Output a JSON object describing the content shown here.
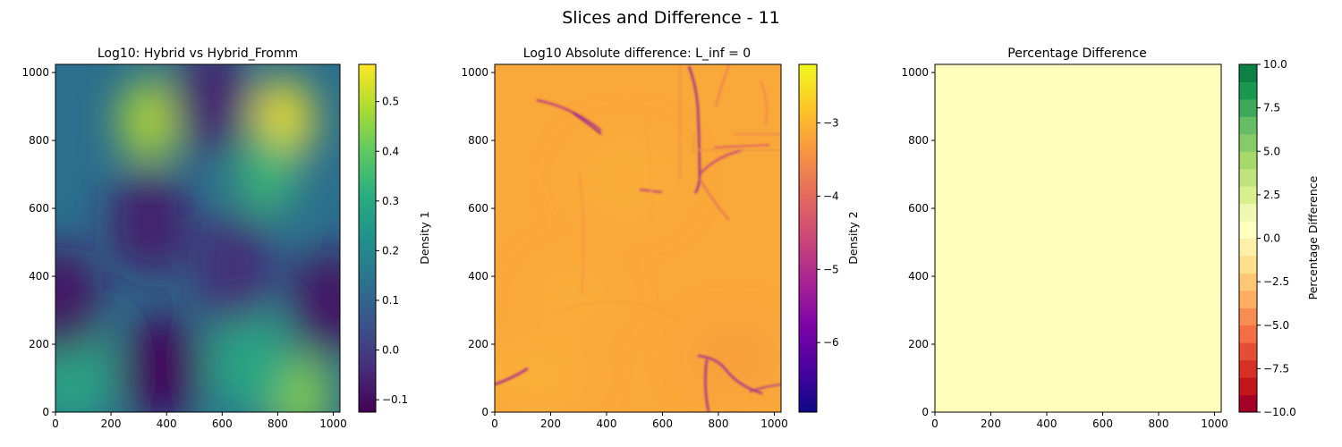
{
  "suptitle": "Slices and Difference - 11",
  "chart_data": [
    {
      "type": "heatmap",
      "title": "Log10: Hybrid vs Hybrid_Fromm",
      "xlabel": "",
      "ylabel": "",
      "xlim": [
        0,
        1024
      ],
      "ylim": [
        0,
        1024
      ],
      "xticks": [
        "0",
        "200",
        "400",
        "600",
        "800",
        "1000"
      ],
      "yticks": [
        "0",
        "200",
        "400",
        "600",
        "800",
        "1000"
      ],
      "colormap": "viridis",
      "colorbar": {
        "label": "Density 1",
        "range": [
          -0.125,
          0.575
        ],
        "ticks": [
          {
            "value": -0.1,
            "label": "−0.1"
          },
          {
            "value": 0.0,
            "label": "0.0"
          },
          {
            "value": 0.1,
            "label": "0.1"
          },
          {
            "value": 0.2,
            "label": "0.2"
          },
          {
            "value": 0.3,
            "label": "0.3"
          },
          {
            "value": 0.4,
            "label": "0.4"
          },
          {
            "value": 0.5,
            "label": "0.5"
          }
        ]
      },
      "features": [
        {
          "x": 820,
          "y": 860,
          "value": 0.57
        },
        {
          "x": 340,
          "y": 860,
          "value": 0.5
        },
        {
          "x": 880,
          "y": 50,
          "value": 0.45
        },
        {
          "x": 760,
          "y": 700,
          "value": 0.35
        },
        {
          "x": 60,
          "y": 120,
          "value": 0.3
        },
        {
          "x": 700,
          "y": 150,
          "value": 0.3
        },
        {
          "x": 380,
          "y": 130,
          "value": -0.12
        },
        {
          "x": 340,
          "y": 560,
          "value": -0.08
        },
        {
          "x": 20,
          "y": 330,
          "value": -0.1
        },
        {
          "x": 990,
          "y": 320,
          "value": -0.1
        },
        {
          "x": 560,
          "y": 920,
          "value": -0.07
        },
        {
          "x": 640,
          "y": 420,
          "value": -0.05
        }
      ]
    },
    {
      "type": "heatmap",
      "title": "Log10 Absolute difference: L_inf = 0",
      "xlabel": "",
      "ylabel": "",
      "xlim": [
        0,
        1024
      ],
      "ylim": [
        0,
        1024
      ],
      "xticks": [
        "0",
        "200",
        "400",
        "600",
        "800",
        "1000"
      ],
      "yticks": [
        "0",
        "200",
        "400",
        "600",
        "800",
        "1000"
      ],
      "colormap": "plasma",
      "colorbar": {
        "label": "Density 2",
        "range": [
          -6.95,
          -2.2
        ],
        "ticks": [
          {
            "value": -3,
            "label": "−3"
          },
          {
            "value": -4,
            "label": "−4"
          },
          {
            "value": -5,
            "label": "−5"
          },
          {
            "value": -6,
            "label": "−6"
          }
        ]
      },
      "background_value": -3.0
    },
    {
      "type": "heatmap",
      "title": "Percentage Difference",
      "xlabel": "",
      "ylabel": "",
      "xlim": [
        0,
        1024
      ],
      "ylim": [
        0,
        1024
      ],
      "xticks": [
        "0",
        "200",
        "400",
        "600",
        "800",
        "1000"
      ],
      "yticks": [
        "0",
        "200",
        "400",
        "600",
        "800",
        "1000"
      ],
      "colormap": "RdYlGn (20 levels)",
      "uniform_value": 0,
      "uniform_color": "#fefebd",
      "colorbar": {
        "label": "Percentage Difference",
        "range": [
          -10,
          10
        ],
        "levels": [
          "#a50026",
          "#c2161b",
          "#d73027",
          "#e54d34",
          "#f46d43",
          "#f88d52",
          "#fdae61",
          "#fec776",
          "#fee08b",
          "#fef0a7",
          "#ffffbf",
          "#eef8b3",
          "#d9ef8b",
          "#c0e47c",
          "#a6d96a",
          "#86cb67",
          "#66bd63",
          "#3fa95b",
          "#1a9850",
          "#0d8144"
        ],
        "ticks": [
          {
            "value": 10,
            "label": "10.0"
          },
          {
            "value": 7.5,
            "label": "7.5"
          },
          {
            "value": 5,
            "label": "5.0"
          },
          {
            "value": 2.5,
            "label": "2.5"
          },
          {
            "value": 0,
            "label": "0.0"
          },
          {
            "value": -2.5,
            "label": "−2.5"
          },
          {
            "value": -5,
            "label": "−5.0"
          },
          {
            "value": -7.5,
            "label": "−7.5"
          },
          {
            "value": -10,
            "label": "−10.0"
          }
        ]
      }
    }
  ]
}
